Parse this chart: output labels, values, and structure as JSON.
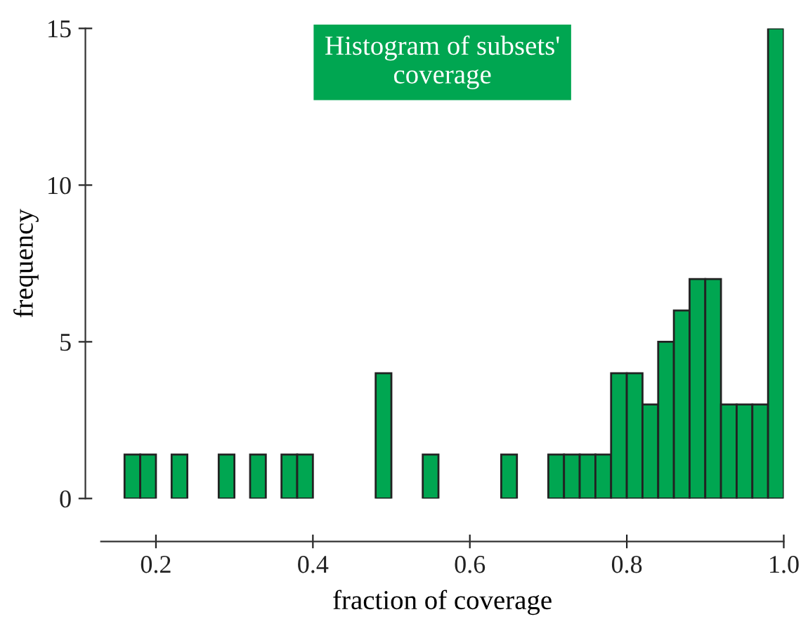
{
  "chart_data": {
    "type": "histogram",
    "title": "Histogram of subsets'\ncoverage",
    "xlabel": "fraction of coverage",
    "ylabel": "frequency",
    "bins": [
      0.16,
      0.18,
      0.2,
      0.22,
      0.24,
      0.26,
      0.28,
      0.3,
      0.32,
      0.34,
      0.36,
      0.38,
      0.4,
      0.42,
      0.44,
      0.46,
      0.48,
      0.5,
      0.52,
      0.54,
      0.56,
      0.58,
      0.6,
      0.62,
      0.64,
      0.66,
      0.68,
      0.7,
      0.72,
      0.74,
      0.76,
      0.78,
      0.8,
      0.82,
      0.84,
      0.86,
      0.88,
      0.9,
      0.92,
      0.94,
      0.96,
      0.98,
      1.0
    ],
    "values": [
      1.4,
      1.4,
      0,
      1.4,
      0,
      0,
      1.4,
      0,
      1.4,
      0,
      1.4,
      1.4,
      0,
      0,
      0,
      0,
      4,
      0,
      0,
      1.4,
      0,
      0,
      0,
      0,
      1.4,
      0,
      0,
      1.4,
      1.4,
      1.4,
      1.4,
      4,
      4,
      3,
      5,
      6,
      7,
      7,
      3,
      3,
      3,
      15
    ],
    "color": "#00a651",
    "xlim": [
      0.13,
      1.0
    ],
    "ylim": [
      0,
      15
    ],
    "xticks": [
      0.2,
      0.4,
      0.6,
      0.8,
      {
        "value": 1.0,
        "label": "1.0"
      }
    ],
    "yticks": [
      0,
      5,
      10,
      15
    ],
    "grid": false,
    "legend": false
  }
}
